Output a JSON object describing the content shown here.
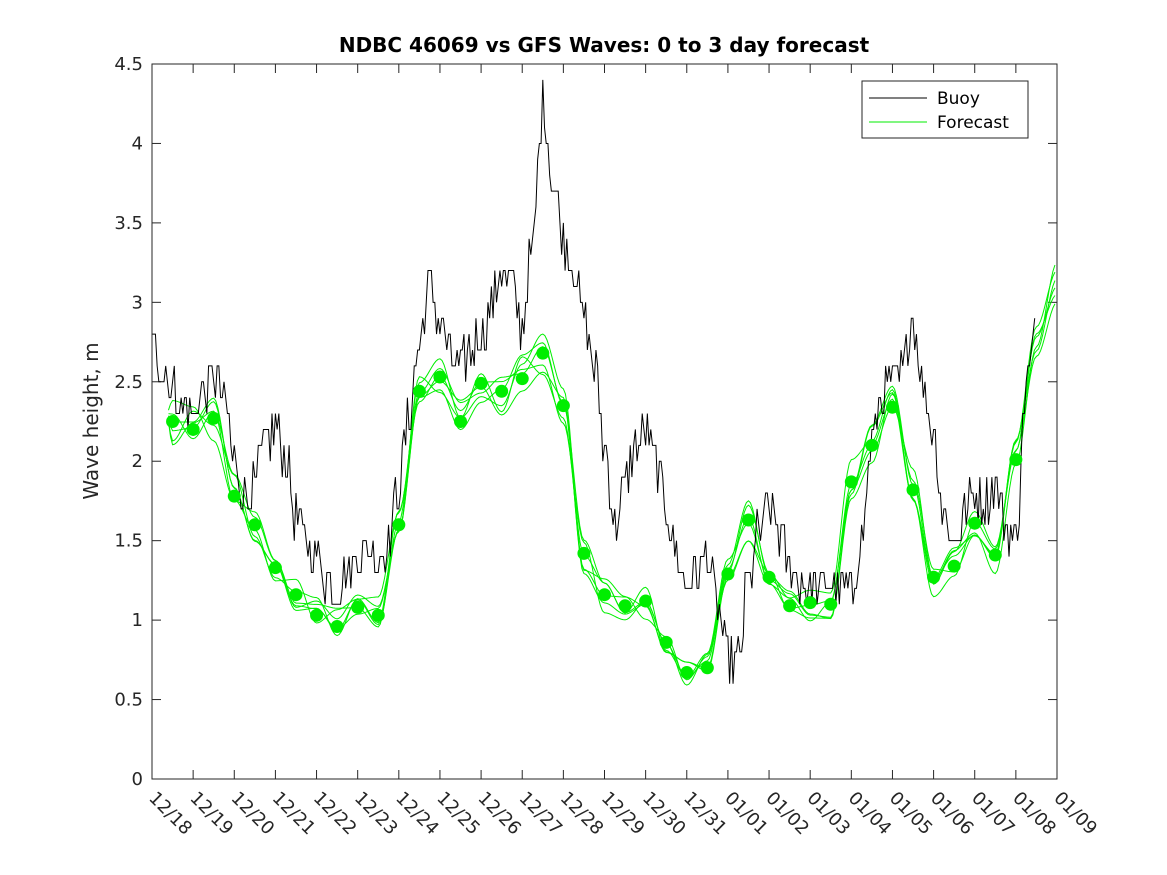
{
  "chart_data": {
    "type": "line",
    "title": "NDBC 46069 vs GFS Waves: 0 to 3 day forecast",
    "xlabel": "",
    "ylabel": "Wave height, m",
    "ylim": [
      0,
      4.5
    ],
    "xlim_days": [
      0,
      22
    ],
    "y_ticks": [
      "0",
      "0.5",
      "1",
      "1.5",
      "2",
      "2.5",
      "3",
      "3.5",
      "4",
      "4.5"
    ],
    "x_tick_labels": [
      "12/18",
      "12/19",
      "12/20",
      "12/21",
      "12/22",
      "12/23",
      "12/24",
      "12/25",
      "12/26",
      "12/27",
      "12/28",
      "12/29",
      "12/30",
      "12/31",
      "01/01",
      "01/02",
      "01/03",
      "01/04",
      "01/05",
      "01/06",
      "01/07",
      "01/08",
      "01/09"
    ],
    "legend": {
      "location": "top-right",
      "entries": [
        "Buoy",
        "Forecast"
      ]
    },
    "colors": {
      "buoy": "#000000",
      "forecast": "#00ee00",
      "axes": "#262626"
    },
    "buoy_series": {
      "name": "Buoy",
      "x": [
        0,
        0.25,
        0.5,
        0.75,
        1,
        1.25,
        1.5,
        1.75,
        2,
        2.25,
        2.5,
        2.75,
        3,
        3.25,
        3.5,
        3.75,
        4,
        4.25,
        4.5,
        4.75,
        5,
        5.25,
        5.5,
        5.75,
        6,
        6.25,
        6.5,
        6.75,
        7,
        7.25,
        7.5,
        7.75,
        8,
        8.25,
        8.5,
        8.75,
        9,
        9.25,
        9.5,
        9.75,
        10,
        10.25,
        10.5,
        10.75,
        11,
        11.25,
        11.5,
        11.75,
        12,
        12.25,
        12.5,
        12.75,
        13,
        13.25,
        13.5,
        13.75,
        14,
        14.25,
        14.5,
        14.75,
        15,
        15.25,
        15.5,
        15.75,
        16,
        16.25,
        16.5,
        16.75,
        17,
        17.25,
        17.5,
        17.75,
        18,
        18.25,
        18.5,
        18.75,
        19,
        19.25,
        19.5,
        19.75,
        20,
        20.25,
        20.5,
        20.75,
        21,
        21.25,
        21.5
      ],
      "values": [
        2.75,
        2.6,
        2.45,
        2.35,
        2.3,
        2.45,
        2.55,
        2.4,
        2.0,
        1.75,
        1.85,
        2.1,
        2.2,
        2.05,
        1.65,
        1.5,
        1.4,
        1.25,
        1.2,
        1.3,
        1.4,
        1.45,
        1.4,
        1.5,
        1.85,
        2.3,
        2.75,
        3.1,
        2.9,
        2.65,
        2.6,
        2.7,
        2.8,
        2.95,
        3.2,
        3.1,
        2.85,
        3.35,
        4.25,
        3.75,
        3.4,
        3.2,
        2.9,
        2.6,
        2.1,
        1.6,
        1.85,
        2.1,
        2.2,
        2.0,
        1.7,
        1.4,
        1.2,
        1.3,
        1.4,
        1.05,
        0.75,
        0.75,
        1.25,
        1.55,
        1.7,
        1.55,
        1.35,
        1.25,
        1.2,
        1.2,
        1.25,
        1.2,
        1.15,
        1.5,
        2.1,
        2.4,
        2.5,
        2.55,
        2.9,
        2.45,
        2.2,
        1.65,
        1.5,
        1.65,
        1.8,
        1.75,
        1.85,
        1.6,
        1.5,
        2.5,
        2.8
      ]
    },
    "forecast_points": {
      "name": "Forecast",
      "x": [
        0.5,
        1.0,
        1.5,
        2.0,
        2.5,
        3.0,
        3.5,
        4.0,
        4.5,
        5.0,
        5.5,
        6.0,
        6.5,
        7.0,
        7.5,
        8.0,
        8.5,
        9.0,
        9.5,
        10.0,
        10.5,
        11.0,
        11.5,
        12.0,
        12.5,
        13.0,
        13.5,
        14.0,
        14.5,
        15.0,
        15.5,
        16.0,
        16.5,
        17.0,
        17.5,
        18.0,
        18.5,
        19.0,
        19.5,
        20.0,
        20.5,
        21.0
      ],
      "values": [
        2.25,
        2.2,
        2.27,
        1.78,
        1.6,
        1.33,
        1.16,
        1.03,
        0.96,
        1.08,
        1.03,
        1.6,
        2.44,
        2.53,
        2.25,
        2.49,
        2.44,
        2.52,
        2.68,
        2.35,
        1.42,
        1.16,
        1.09,
        1.12,
        0.86,
        0.67,
        0.7,
        1.29,
        1.63,
        1.27,
        1.09,
        1.11,
        1.1,
        1.87,
        2.1,
        2.34,
        1.82,
        1.27,
        1.34,
        1.61,
        1.41,
        2.01
      ]
    },
    "forecast_end_values": [
      3.2,
      3.1,
      3.05,
      3.15,
      3.25,
      3.0
    ]
  }
}
